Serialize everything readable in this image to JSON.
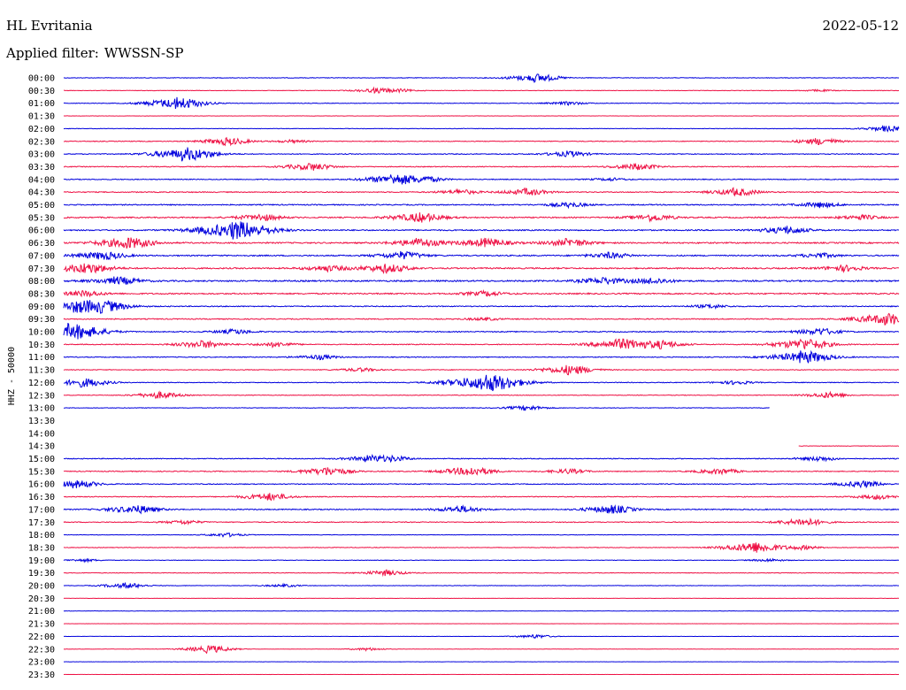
{
  "header": {
    "station": "HL Evritania",
    "date": "2022-05-12",
    "filter_label": "Applied filter:",
    "filter_value": "WWSSN-SP"
  },
  "colors": {
    "trace_a": "#0000dd",
    "trace_b": "#ee1144",
    "text": "#000000",
    "background": "#ffffff"
  },
  "chart_data": {
    "type": "helicorder",
    "title": "",
    "ylabel": "HHZ - 50000",
    "xlabel": "",
    "grid": false,
    "legend": "none",
    "row_minutes": 30,
    "rows": [
      {
        "label": "00:00",
        "color": "blue",
        "start": 0,
        "end": 1,
        "noise": 0.25,
        "events": [
          [
            0.56,
            0.9
          ]
        ]
      },
      {
        "label": "00:30",
        "color": "red",
        "start": 0,
        "end": 1,
        "noise": 0.2,
        "events": [
          [
            0.37,
            0.5
          ],
          [
            0.4,
            0.25
          ],
          [
            0.9,
            0.2
          ]
        ]
      },
      {
        "label": "01:00",
        "color": "blue",
        "start": 0,
        "end": 1,
        "noise": 0.25,
        "events": [
          [
            0.13,
            1.3
          ],
          [
            0.6,
            0.35
          ]
        ]
      },
      {
        "label": "01:30",
        "color": "red",
        "start": 0,
        "end": 1,
        "noise": 0.15,
        "events": []
      },
      {
        "label": "02:00",
        "color": "blue",
        "start": 0,
        "end": 1,
        "noise": 0.2,
        "events": [
          [
            0.98,
            0.6
          ]
        ]
      },
      {
        "label": "02:30",
        "color": "red",
        "start": 0,
        "end": 1,
        "noise": 0.3,
        "events": [
          [
            0.19,
            0.8
          ],
          [
            0.27,
            0.3
          ],
          [
            0.9,
            0.7
          ]
        ]
      },
      {
        "label": "03:00",
        "color": "blue",
        "start": 0,
        "end": 1,
        "noise": 0.35,
        "events": [
          [
            0.14,
            1.4
          ],
          [
            0.6,
            0.6
          ]
        ]
      },
      {
        "label": "03:30",
        "color": "red",
        "start": 0,
        "end": 1,
        "noise": 0.35,
        "events": [
          [
            0.29,
            0.8
          ],
          [
            0.68,
            0.7
          ]
        ]
      },
      {
        "label": "04:00",
        "color": "blue",
        "start": 0,
        "end": 1,
        "noise": 0.35,
        "events": [
          [
            0.39,
            1.1
          ],
          [
            0.43,
            0.5
          ],
          [
            0.65,
            0.3
          ]
        ]
      },
      {
        "label": "04:30",
        "color": "red",
        "start": 0,
        "end": 1,
        "noise": 0.4,
        "events": [
          [
            0.47,
            0.5
          ],
          [
            0.55,
            0.7
          ],
          [
            0.8,
            0.8
          ]
        ]
      },
      {
        "label": "05:00",
        "color": "blue",
        "start": 0,
        "end": 1,
        "noise": 0.45,
        "events": [
          [
            0.6,
            0.5
          ],
          [
            0.9,
            0.6
          ]
        ]
      },
      {
        "label": "05:30",
        "color": "red",
        "start": 0,
        "end": 1,
        "noise": 0.5,
        "events": [
          [
            0.23,
            0.7
          ],
          [
            0.42,
            1.0
          ],
          [
            0.7,
            0.7
          ],
          [
            0.95,
            0.5
          ]
        ]
      },
      {
        "label": "06:00",
        "color": "blue",
        "start": 0,
        "end": 1,
        "noise": 0.5,
        "events": [
          [
            0.2,
            1.9
          ],
          [
            0.86,
            0.8
          ]
        ]
      },
      {
        "label": "06:30",
        "color": "red",
        "start": 0,
        "end": 1,
        "noise": 0.55,
        "events": [
          [
            0.07,
            1.2
          ],
          [
            0.42,
            0.9
          ],
          [
            0.5,
            0.9
          ],
          [
            0.6,
            0.8
          ]
        ]
      },
      {
        "label": "07:00",
        "color": "blue",
        "start": 0,
        "end": 1,
        "noise": 0.5,
        "events": [
          [
            0.04,
            0.9
          ],
          [
            0.4,
            0.8
          ],
          [
            0.65,
            0.6
          ],
          [
            0.9,
            0.5
          ]
        ]
      },
      {
        "label": "07:30",
        "color": "red",
        "start": 0,
        "end": 1,
        "noise": 0.55,
        "events": [
          [
            0.02,
            1.1
          ],
          [
            0.31,
            0.6
          ],
          [
            0.38,
            0.9
          ],
          [
            0.93,
            0.6
          ]
        ]
      },
      {
        "label": "08:00",
        "color": "blue",
        "start": 0,
        "end": 1,
        "noise": 0.6,
        "events": [
          [
            0.06,
            0.8
          ],
          [
            0.64,
            0.7
          ],
          [
            0.7,
            0.6
          ]
        ]
      },
      {
        "label": "08:30",
        "color": "red",
        "start": 0,
        "end": 1,
        "noise": 0.55,
        "events": [
          [
            0.02,
            0.6
          ],
          [
            0.5,
            0.5
          ]
        ]
      },
      {
        "label": "09:00",
        "color": "blue",
        "start": 0,
        "end": 1,
        "noise": 0.4,
        "events": [
          [
            0.01,
            0.9
          ],
          [
            0.04,
            1.2
          ],
          [
            0.77,
            0.4
          ]
        ]
      },
      {
        "label": "09:30",
        "color": "red",
        "start": 0,
        "end": 1,
        "noise": 0.4,
        "events": [
          [
            0.5,
            0.3
          ],
          [
            0.98,
            1.3
          ]
        ]
      },
      {
        "label": "10:00",
        "color": "blue",
        "start": 0,
        "end": 1,
        "noise": 0.4,
        "events": [
          [
            0.005,
            1.6
          ],
          [
            0.2,
            0.5
          ],
          [
            0.9,
            0.7
          ]
        ]
      },
      {
        "label": "10:30",
        "color": "red",
        "start": 0,
        "end": 1,
        "noise": 0.35,
        "events": [
          [
            0.16,
            0.8
          ],
          [
            0.25,
            0.5
          ],
          [
            0.66,
            1.1
          ],
          [
            0.71,
            0.8
          ],
          [
            0.88,
            1.2
          ]
        ]
      },
      {
        "label": "11:00",
        "color": "blue",
        "start": 0,
        "end": 1,
        "noise": 0.35,
        "events": [
          [
            0.3,
            0.5
          ],
          [
            0.88,
            1.3
          ]
        ]
      },
      {
        "label": "11:30",
        "color": "red",
        "start": 0,
        "end": 1,
        "noise": 0.3,
        "events": [
          [
            0.35,
            0.4
          ],
          [
            0.6,
            1.0
          ]
        ]
      },
      {
        "label": "12:00",
        "color": "blue",
        "start": 0,
        "end": 1,
        "noise": 0.3,
        "events": [
          [
            0.02,
            0.9
          ],
          [
            0.5,
            1.9
          ],
          [
            0.8,
            0.4
          ]
        ]
      },
      {
        "label": "12:30",
        "color": "red",
        "start": 0,
        "end": 1,
        "noise": 0.25,
        "events": [
          [
            0.11,
            0.7
          ],
          [
            0.91,
            0.6
          ]
        ]
      },
      {
        "label": "13:00",
        "color": "blue",
        "start": 0,
        "end": 0.845,
        "noise": 0.25,
        "events": [
          [
            0.55,
            0.5
          ]
        ]
      },
      {
        "label": "13:30",
        "color": "red",
        "start": 0,
        "end": 0,
        "noise": 0,
        "events": []
      },
      {
        "label": "14:00",
        "color": "blue",
        "start": 0,
        "end": 0,
        "noise": 0,
        "events": []
      },
      {
        "label": "14:30",
        "color": "red",
        "start": 0.88,
        "end": 1,
        "noise": 0.2,
        "events": []
      },
      {
        "label": "15:00",
        "color": "blue",
        "start": 0,
        "end": 1,
        "noise": 0.35,
        "events": [
          [
            0.36,
            0.6
          ],
          [
            0.39,
            0.5
          ],
          [
            0.9,
            0.5
          ]
        ]
      },
      {
        "label": "15:30",
        "color": "red",
        "start": 0,
        "end": 1,
        "noise": 0.35,
        "events": [
          [
            0.31,
            0.9
          ],
          [
            0.48,
            1.0
          ],
          [
            0.6,
            0.5
          ],
          [
            0.78,
            0.6
          ]
        ]
      },
      {
        "label": "16:00",
        "color": "blue",
        "start": 0,
        "end": 1,
        "noise": 0.35,
        "events": [
          [
            0.01,
            0.8
          ],
          [
            0.95,
            0.7
          ]
        ]
      },
      {
        "label": "16:30",
        "color": "red",
        "start": 0,
        "end": 1,
        "noise": 0.35,
        "events": [
          [
            0.24,
            0.8
          ],
          [
            0.97,
            0.5
          ]
        ]
      },
      {
        "label": "17:00",
        "color": "blue",
        "start": 0,
        "end": 1,
        "noise": 0.4,
        "events": [
          [
            0.08,
            0.9
          ],
          [
            0.47,
            0.7
          ],
          [
            0.65,
            0.9
          ]
        ]
      },
      {
        "label": "17:30",
        "color": "red",
        "start": 0,
        "end": 1,
        "noise": 0.35,
        "events": [
          [
            0.14,
            0.4
          ],
          [
            0.88,
            0.8
          ]
        ]
      },
      {
        "label": "18:00",
        "color": "blue",
        "start": 0,
        "end": 1,
        "noise": 0.2,
        "events": [
          [
            0.19,
            0.4
          ]
        ]
      },
      {
        "label": "18:30",
        "color": "red",
        "start": 0,
        "end": 1,
        "noise": 0.25,
        "events": [
          [
            0.82,
            1.2
          ],
          [
            0.88,
            0.4
          ]
        ]
      },
      {
        "label": "19:00",
        "color": "blue",
        "start": 0,
        "end": 1,
        "noise": 0.2,
        "events": [
          [
            0.02,
            0.3
          ],
          [
            0.84,
            0.3
          ]
        ]
      },
      {
        "label": "19:30",
        "color": "red",
        "start": 0,
        "end": 1,
        "noise": 0.25,
        "events": [
          [
            0.38,
            0.6
          ]
        ]
      },
      {
        "label": "20:00",
        "color": "blue",
        "start": 0,
        "end": 1,
        "noise": 0.2,
        "events": [
          [
            0.07,
            0.6
          ],
          [
            0.26,
            0.3
          ]
        ]
      },
      {
        "label": "20:30",
        "color": "red",
        "start": 0,
        "end": 1,
        "noise": 0.1,
        "events": []
      },
      {
        "label": "21:00",
        "color": "blue",
        "start": 0,
        "end": 1,
        "noise": 0.15,
        "events": []
      },
      {
        "label": "21:30",
        "color": "red",
        "start": 0,
        "end": 1,
        "noise": 0.1,
        "events": []
      },
      {
        "label": "22:00",
        "color": "blue",
        "start": 0,
        "end": 1,
        "noise": 0.1,
        "events": [
          [
            0.56,
            0.4
          ]
        ]
      },
      {
        "label": "22:30",
        "color": "red",
        "start": 0,
        "end": 1,
        "noise": 0.12,
        "events": [
          [
            0.17,
            0.8
          ],
          [
            0.36,
            0.3
          ]
        ]
      },
      {
        "label": "23:00",
        "color": "blue",
        "start": 0,
        "end": 1,
        "noise": 0.1,
        "events": []
      },
      {
        "label": "23:30",
        "color": "red",
        "start": 0,
        "end": 1,
        "noise": 0.08,
        "events": []
      }
    ]
  }
}
